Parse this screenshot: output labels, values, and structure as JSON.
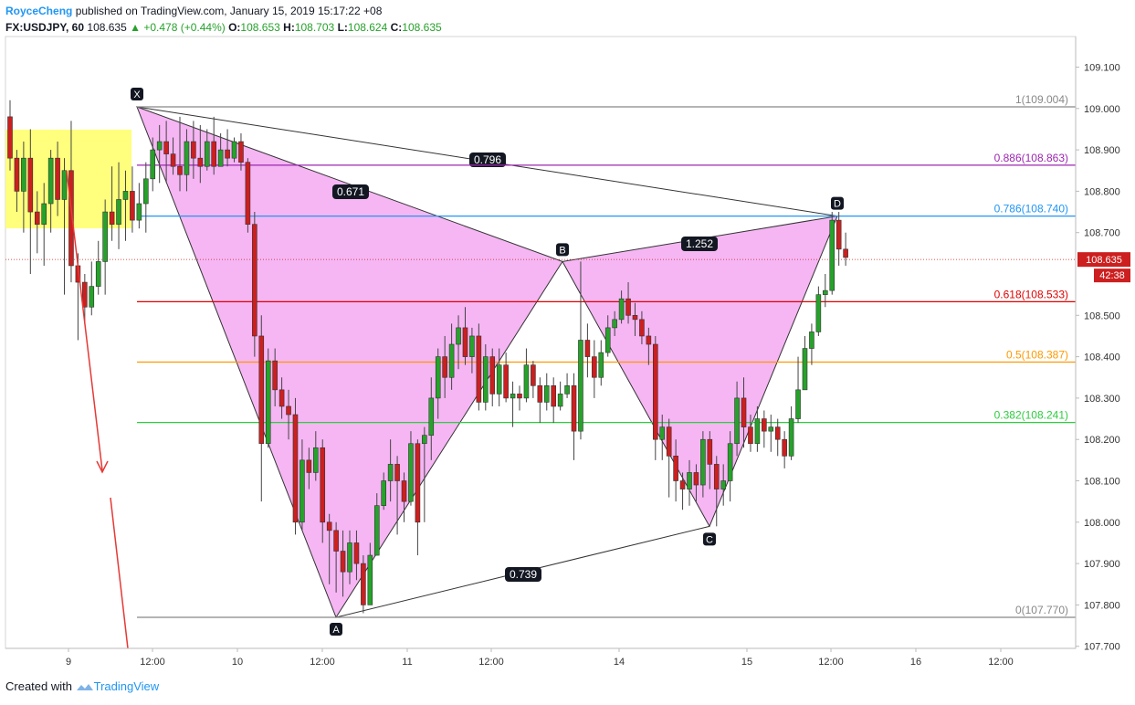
{
  "header": {
    "author": "RoyceCheng",
    "published": "published on TradingView.com, January 15, 2019 15:17:22 +08",
    "symbol": "FX:USDJPY, 60",
    "price": "108.635",
    "change": "▲ +0.478 (+0.44%)",
    "o_label": "O:",
    "o_value": "108.653",
    "h_label": "H:",
    "h_value": "108.703",
    "l_label": "L:",
    "l_value": "108.624",
    "c_label": "C:",
    "c_value": "108.635"
  },
  "footer": {
    "created_with": "Created with",
    "brand": "TradingView"
  },
  "colors": {
    "up": "#26a22b",
    "down": "#cc1f1f",
    "pattern": "#f3a9f1",
    "box": "#ffff66"
  },
  "chart_data": {
    "type": "candlestick",
    "ylim": [
      107.7,
      109.16
    ],
    "y_ticks": [
      "109.100",
      "109.000",
      "108.900",
      "108.800",
      "108.700",
      "108.500",
      "108.400",
      "108.300",
      "108.200",
      "108.100",
      "108.000",
      "107.900",
      "107.800",
      "107.700"
    ],
    "x_ticks": [
      "9",
      "12:00",
      "10",
      "12:00",
      "11",
      "12:00",
      "14",
      "15",
      "12:00",
      "16",
      "12:00"
    ],
    "price_label": "108.635",
    "countdown": "42:38",
    "last_price": 108.635,
    "fib_levels": [
      {
        "ratio": "1",
        "value": 109.004,
        "label": "1(109.004)",
        "color": "#888888"
      },
      {
        "ratio": "0.886",
        "value": 108.863,
        "label": "0.886(108.863)",
        "color": "#9c27b0"
      },
      {
        "ratio": "0.786",
        "value": 108.74,
        "label": "0.786(108.740)",
        "color": "#2196f3"
      },
      {
        "ratio": "0.618",
        "value": 108.533,
        "label": "0.618(108.533)",
        "color": "#e00000"
      },
      {
        "ratio": "0.5",
        "value": 108.387,
        "label": "0.5(108.387)",
        "color": "#ff9800"
      },
      {
        "ratio": "0.382",
        "value": 108.241,
        "label": "0.382(108.241)",
        "color": "#2ecc40"
      },
      {
        "ratio": "0",
        "value": 107.77,
        "label": "0(107.770)",
        "color": "#888888"
      }
    ],
    "pattern_points": [
      {
        "name": "X",
        "value": 109.004
      },
      {
        "name": "A",
        "value": 107.77
      },
      {
        "name": "B",
        "value": 108.63
      },
      {
        "name": "C",
        "value": 107.99
      },
      {
        "name": "D",
        "value": 108.74
      }
    ],
    "pattern_ratios": [
      {
        "label": "0.671"
      },
      {
        "label": "0.796"
      },
      {
        "label": "1.252"
      },
      {
        "label": "0.739"
      }
    ],
    "candles": [
      [
        108.98,
        108.88,
        109.02,
        108.85
      ],
      [
        108.88,
        108.8,
        108.9,
        108.75
      ],
      [
        108.8,
        108.88,
        108.92,
        108.7
      ],
      [
        108.88,
        108.75,
        108.95,
        108.6
      ],
      [
        108.75,
        108.72,
        108.8,
        108.65
      ],
      [
        108.72,
        108.77,
        108.82,
        108.62
      ],
      [
        108.77,
        108.88,
        108.9,
        108.7
      ],
      [
        108.88,
        108.78,
        108.92,
        108.74
      ],
      [
        108.78,
        108.85,
        108.88,
        108.55
      ],
      [
        108.85,
        108.62,
        108.97,
        108.58
      ],
      [
        108.62,
        108.58,
        108.65,
        108.44
      ],
      [
        108.58,
        108.52,
        108.6,
        108.48
      ],
      [
        108.52,
        108.57,
        108.63,
        108.5
      ],
      [
        108.57,
        108.63,
        108.68,
        108.55
      ],
      [
        108.63,
        108.75,
        108.78,
        108.55
      ],
      [
        108.75,
        108.72,
        108.86,
        108.68
      ],
      [
        108.72,
        108.78,
        108.87,
        108.66
      ],
      [
        108.78,
        108.8,
        108.85,
        108.68
      ],
      [
        108.8,
        108.73,
        108.86,
        108.7
      ],
      [
        108.73,
        108.77,
        108.82,
        108.71
      ],
      [
        108.77,
        108.83,
        108.87,
        108.7
      ],
      [
        108.83,
        108.9,
        108.93,
        108.8
      ],
      [
        108.9,
        108.92,
        108.96,
        108.82
      ],
      [
        108.92,
        108.89,
        108.97,
        108.82
      ],
      [
        108.89,
        108.86,
        108.93,
        108.84
      ],
      [
        108.86,
        108.84,
        108.98,
        108.8
      ],
      [
        108.84,
        108.92,
        108.95,
        108.8
      ],
      [
        108.92,
        108.88,
        108.97,
        108.83
      ],
      [
        108.88,
        108.86,
        108.96,
        108.82
      ],
      [
        108.86,
        108.92,
        108.95,
        108.85
      ],
      [
        108.92,
        108.86,
        108.98,
        108.84
      ],
      [
        108.86,
        108.9,
        108.94,
        108.86
      ],
      [
        108.9,
        108.88,
        108.95,
        108.86
      ],
      [
        108.88,
        108.92,
        108.93,
        108.87
      ],
      [
        108.92,
        108.87,
        108.94,
        108.85
      ],
      [
        108.87,
        108.72,
        108.88,
        108.7
      ],
      [
        108.72,
        108.45,
        108.75,
        108.4
      ],
      [
        108.45,
        108.19,
        108.5,
        108.05
      ],
      [
        108.19,
        108.39,
        108.42,
        108.18
      ],
      [
        108.39,
        108.32,
        108.42,
        108.28
      ],
      [
        108.32,
        108.28,
        108.35,
        108.25
      ],
      [
        108.28,
        108.26,
        108.32,
        108.2
      ],
      [
        108.26,
        108.0,
        108.3,
        107.97
      ],
      [
        108.0,
        108.15,
        108.2,
        107.98
      ],
      [
        108.15,
        108.12,
        108.18,
        108.08
      ],
      [
        108.12,
        108.18,
        108.22,
        108.1
      ],
      [
        108.18,
        108.0,
        108.2,
        107.95
      ],
      [
        108.0,
        107.98,
        108.02,
        107.85
      ],
      [
        107.98,
        107.93,
        108.0,
        107.83
      ],
      [
        107.93,
        107.88,
        107.98,
        107.82
      ],
      [
        107.88,
        107.95,
        107.98,
        107.85
      ],
      [
        107.95,
        107.9,
        107.98,
        107.86
      ],
      [
        107.9,
        107.8,
        107.92,
        107.78
      ],
      [
        107.8,
        107.92,
        107.95,
        107.8
      ],
      [
        107.92,
        108.04,
        108.07,
        107.92
      ],
      [
        108.04,
        108.1,
        108.12,
        108.03
      ],
      [
        108.1,
        108.14,
        108.2,
        108.05
      ],
      [
        108.14,
        108.1,
        108.16,
        107.97
      ],
      [
        108.1,
        108.05,
        108.12,
        108.0
      ],
      [
        108.05,
        108.19,
        108.22,
        108.04
      ],
      [
        108.19,
        108.0,
        108.2,
        107.92
      ],
      [
        108.19,
        108.21,
        108.23,
        108.0
      ],
      [
        108.21,
        108.3,
        108.35,
        108.15
      ],
      [
        108.3,
        108.4,
        108.42,
        108.25
      ],
      [
        108.4,
        108.35,
        108.45,
        108.3
      ],
      [
        108.35,
        108.43,
        108.48,
        108.32
      ],
      [
        108.43,
        108.47,
        108.5,
        108.37
      ],
      [
        108.47,
        108.4,
        108.52,
        108.38
      ],
      [
        108.4,
        108.45,
        108.47,
        108.36
      ],
      [
        108.45,
        108.29,
        108.48,
        108.27
      ],
      [
        108.29,
        108.4,
        108.43,
        108.27
      ],
      [
        108.4,
        108.31,
        108.42,
        108.28
      ],
      [
        108.31,
        108.38,
        108.42,
        108.28
      ],
      [
        108.38,
        108.3,
        108.41,
        108.29
      ],
      [
        108.3,
        108.31,
        108.34,
        108.23
      ],
      [
        108.31,
        108.3,
        108.33,
        108.27
      ],
      [
        108.3,
        108.38,
        108.42,
        108.29
      ],
      [
        108.38,
        108.33,
        108.39,
        108.3
      ],
      [
        108.33,
        108.29,
        108.35,
        108.24
      ],
      [
        108.29,
        108.33,
        108.36,
        108.27
      ],
      [
        108.33,
        108.28,
        108.35,
        108.24
      ],
      [
        108.28,
        108.31,
        108.34,
        108.27
      ],
      [
        108.31,
        108.33,
        108.36,
        108.3
      ],
      [
        108.33,
        108.22,
        108.36,
        108.15
      ],
      [
        108.22,
        108.44,
        108.63,
        108.2
      ],
      [
        108.44,
        108.4,
        108.48,
        108.35
      ],
      [
        108.4,
        108.35,
        108.44,
        108.3
      ],
      [
        108.35,
        108.41,
        108.44,
        108.33
      ],
      [
        108.41,
        108.47,
        108.5,
        108.4
      ],
      [
        108.47,
        108.49,
        108.51,
        108.45
      ],
      [
        108.49,
        108.54,
        108.56,
        108.48
      ],
      [
        108.54,
        108.5,
        108.58,
        108.48
      ],
      [
        108.5,
        108.49,
        108.53,
        108.45
      ],
      [
        108.49,
        108.45,
        108.51,
        108.43
      ],
      [
        108.45,
        108.43,
        108.47,
        108.38
      ],
      [
        108.43,
        108.2,
        108.45,
        108.15
      ],
      [
        108.2,
        108.23,
        108.26,
        108.15
      ],
      [
        108.23,
        108.16,
        108.25,
        108.06
      ],
      [
        108.16,
        108.1,
        108.2,
        108.05
      ],
      [
        108.1,
        108.08,
        108.12,
        108.03
      ],
      [
        108.08,
        108.12,
        108.15,
        108.04
      ],
      [
        108.12,
        108.09,
        108.14,
        108.05
      ],
      [
        108.09,
        108.2,
        108.22,
        108.06
      ],
      [
        108.2,
        108.14,
        108.22,
        108.08
      ],
      [
        108.14,
        108.08,
        108.16,
        107.99
      ],
      [
        108.08,
        108.1,
        108.14,
        108.04
      ],
      [
        108.1,
        108.19,
        108.22,
        108.05
      ],
      [
        108.19,
        108.3,
        108.34,
        108.16
      ],
      [
        108.3,
        108.23,
        108.35,
        108.18
      ],
      [
        108.23,
        108.19,
        108.26,
        108.17
      ],
      [
        108.19,
        108.25,
        108.28,
        108.17
      ],
      [
        108.25,
        108.22,
        108.27,
        108.18
      ],
      [
        108.22,
        108.23,
        108.26,
        108.17
      ],
      [
        108.23,
        108.2,
        108.25,
        108.16
      ],
      [
        108.2,
        108.16,
        108.22,
        108.13
      ],
      [
        108.16,
        108.25,
        108.28,
        108.15
      ],
      [
        108.25,
        108.32,
        108.4,
        108.24
      ],
      [
        108.32,
        108.42,
        108.45,
        108.32
      ],
      [
        108.42,
        108.46,
        108.48,
        108.38
      ],
      [
        108.46,
        108.55,
        108.57,
        108.45
      ],
      [
        108.55,
        108.56,
        108.6,
        108.52
      ],
      [
        108.56,
        108.73,
        108.75,
        108.55
      ],
      [
        108.73,
        108.66,
        108.75,
        108.62
      ],
      [
        108.66,
        108.64,
        108.7,
        108.62
      ]
    ]
  }
}
